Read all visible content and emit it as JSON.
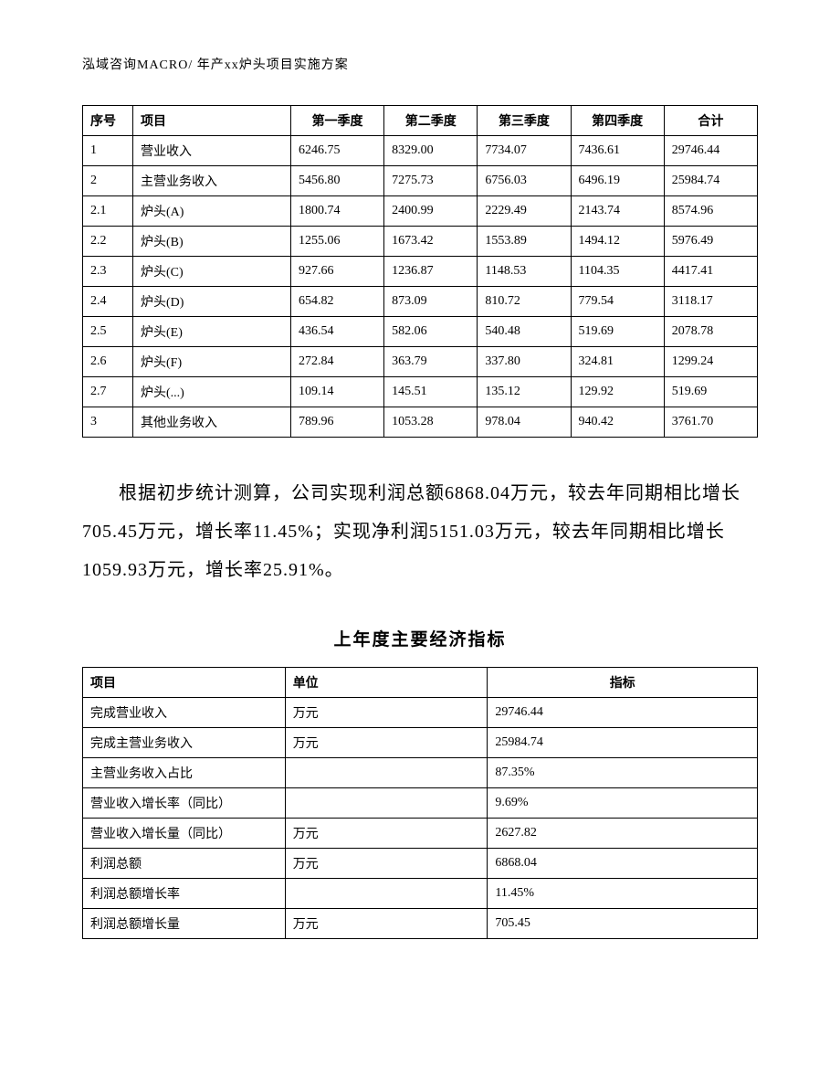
{
  "header": "泓域咨询MACRO/   年产xx炉头项目实施方案",
  "table1": {
    "columns": [
      "序号",
      "项目",
      "第一季度",
      "第二季度",
      "第三季度",
      "第四季度",
      "合计"
    ],
    "rows": [
      [
        "1",
        "营业收入",
        "6246.75",
        "8329.00",
        "7734.07",
        "7436.61",
        "29746.44"
      ],
      [
        "2",
        "主营业务收入",
        "5456.80",
        "7275.73",
        "6756.03",
        "6496.19",
        "25984.74"
      ],
      [
        "2.1",
        "炉头(A)",
        "1800.74",
        "2400.99",
        "2229.49",
        "2143.74",
        "8574.96"
      ],
      [
        "2.2",
        "炉头(B)",
        "1255.06",
        "1673.42",
        "1553.89",
        "1494.12",
        "5976.49"
      ],
      [
        "2.3",
        "炉头(C)",
        "927.66",
        "1236.87",
        "1148.53",
        "1104.35",
        "4417.41"
      ],
      [
        "2.4",
        "炉头(D)",
        "654.82",
        "873.09",
        "810.72",
        "779.54",
        "3118.17"
      ],
      [
        "2.5",
        "炉头(E)",
        "436.54",
        "582.06",
        "540.48",
        "519.69",
        "2078.78"
      ],
      [
        "2.6",
        "炉头(F)",
        "272.84",
        "363.79",
        "337.80",
        "324.81",
        "1299.24"
      ],
      [
        "2.7",
        "炉头(...)",
        "109.14",
        "145.51",
        "135.12",
        "129.92",
        "519.69"
      ],
      [
        "3",
        "其他业务收入",
        "789.96",
        "1053.28",
        "978.04",
        "940.42",
        "3761.70"
      ]
    ]
  },
  "paragraph": "根据初步统计测算，公司实现利润总额6868.04万元，较去年同期相比增长705.45万元，增长率11.45%；实现净利润5151.03万元，较去年同期相比增长1059.93万元，增长率25.91%。",
  "subtitle": "上年度主要经济指标",
  "table2": {
    "columns": [
      "项目",
      "单位",
      "指标"
    ],
    "rows": [
      [
        "完成营业收入",
        "万元",
        "29746.44"
      ],
      [
        "完成主营业务收入",
        "万元",
        "25984.74"
      ],
      [
        "主营业务收入占比",
        "",
        "87.35%"
      ],
      [
        "营业收入增长率（同比）",
        "",
        "9.69%"
      ],
      [
        "营业收入增长量（同比）",
        "万元",
        "2627.82"
      ],
      [
        "利润总额",
        "万元",
        "6868.04"
      ],
      [
        "利润总额增长率",
        "",
        "11.45%"
      ],
      [
        "利润总额增长量",
        "万元",
        "705.45"
      ]
    ]
  }
}
